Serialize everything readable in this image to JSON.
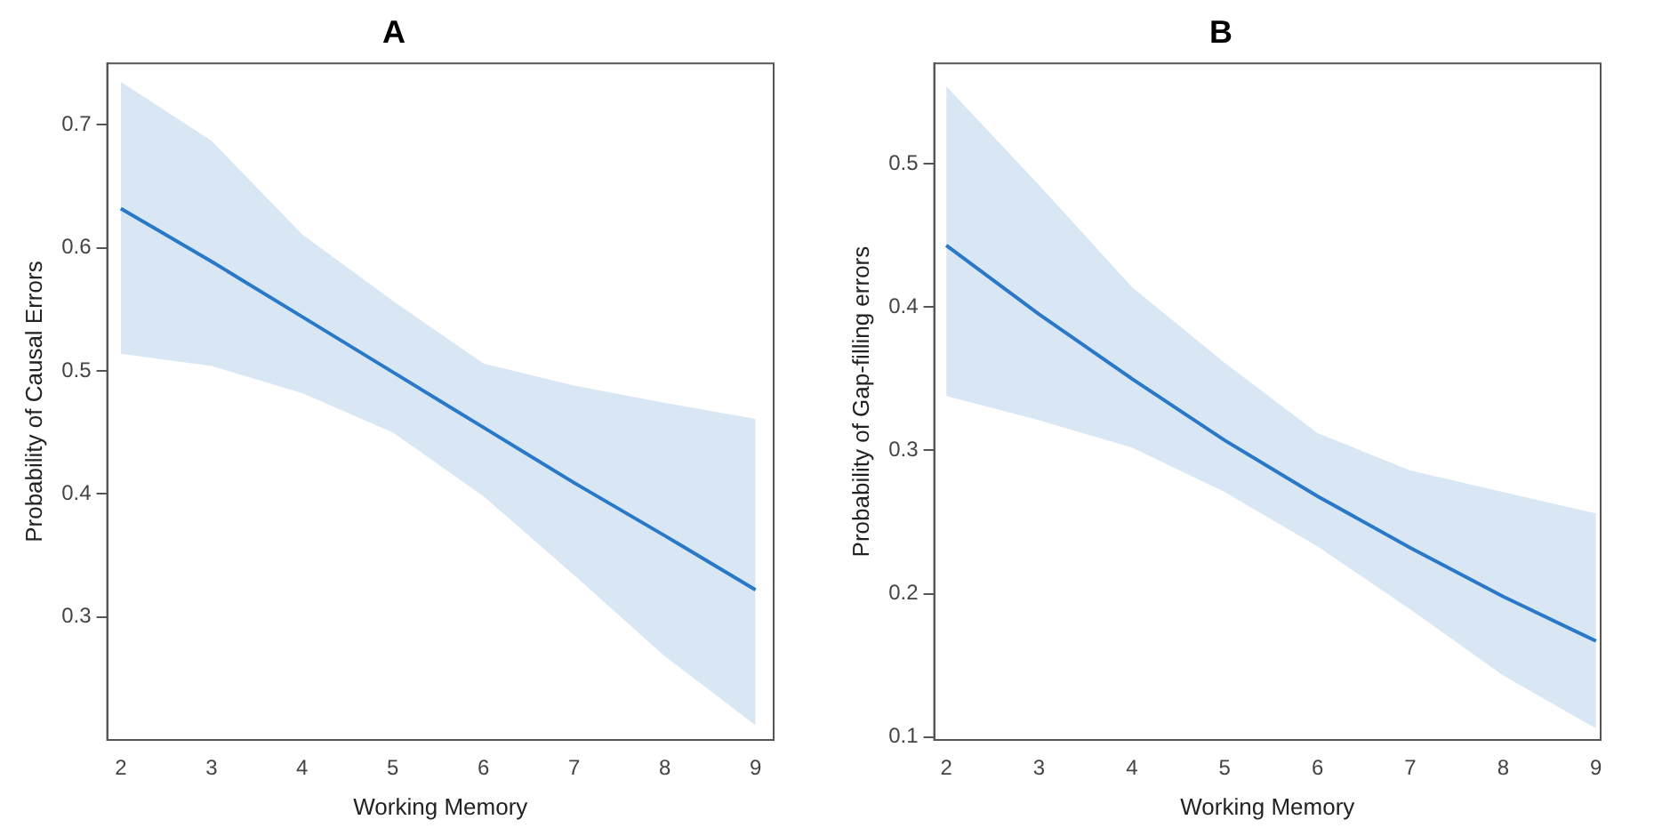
{
  "chart_data": [
    {
      "type": "line",
      "title": "A",
      "xlabel": "Working Memory",
      "ylabel": "Probability of Causal Errors",
      "x": [
        2,
        3,
        4,
        5,
        6,
        7,
        8,
        9
      ],
      "series": [
        {
          "color": "#2a78c8",
          "values": [
            0.632,
            0.589,
            0.544,
            0.499,
            0.454,
            0.409,
            0.366,
            0.322
          ],
          "lower": [
            0.514,
            0.504,
            0.482,
            0.45,
            0.398,
            0.334,
            0.268,
            0.212
          ],
          "upper": [
            0.735,
            0.687,
            0.611,
            0.557,
            0.506,
            0.488,
            0.474,
            0.461
          ]
        }
      ],
      "xlim": [
        1.85,
        9.2
      ],
      "xticks": [
        2,
        3,
        4,
        5,
        6,
        7,
        8,
        9
      ],
      "ylim": [
        0.2,
        0.75
      ],
      "yticks": [
        0.3,
        0.4,
        0.5,
        0.6,
        0.7
      ],
      "grid": false,
      "legend": false,
      "marker": "none",
      "line_style": "solid"
    },
    {
      "type": "line",
      "title": "B",
      "xlabel": "Working Memory",
      "ylabel": "Probability of Gap-filling errors",
      "x": [
        2,
        3,
        4,
        5,
        6,
        7,
        8,
        9
      ],
      "series": [
        {
          "color": "#2a78c8",
          "values": [
            0.443,
            0.395,
            0.35,
            0.307,
            0.268,
            0.232,
            0.198,
            0.167
          ],
          "lower": [
            0.338,
            0.321,
            0.302,
            0.271,
            0.233,
            0.189,
            0.143,
            0.106
          ],
          "upper": [
            0.554,
            0.485,
            0.414,
            0.361,
            0.312,
            0.286,
            0.271,
            0.256
          ]
        }
      ],
      "xlim": [
        1.87,
        9.05
      ],
      "xticks": [
        2,
        3,
        4,
        5,
        6,
        7,
        8,
        9
      ],
      "ylim": [
        0.098,
        0.57
      ],
      "yticks": [
        0.1,
        0.2,
        0.3,
        0.4,
        0.5
      ],
      "grid": false,
      "legend": false,
      "marker": "none",
      "line_style": "solid"
    }
  ]
}
